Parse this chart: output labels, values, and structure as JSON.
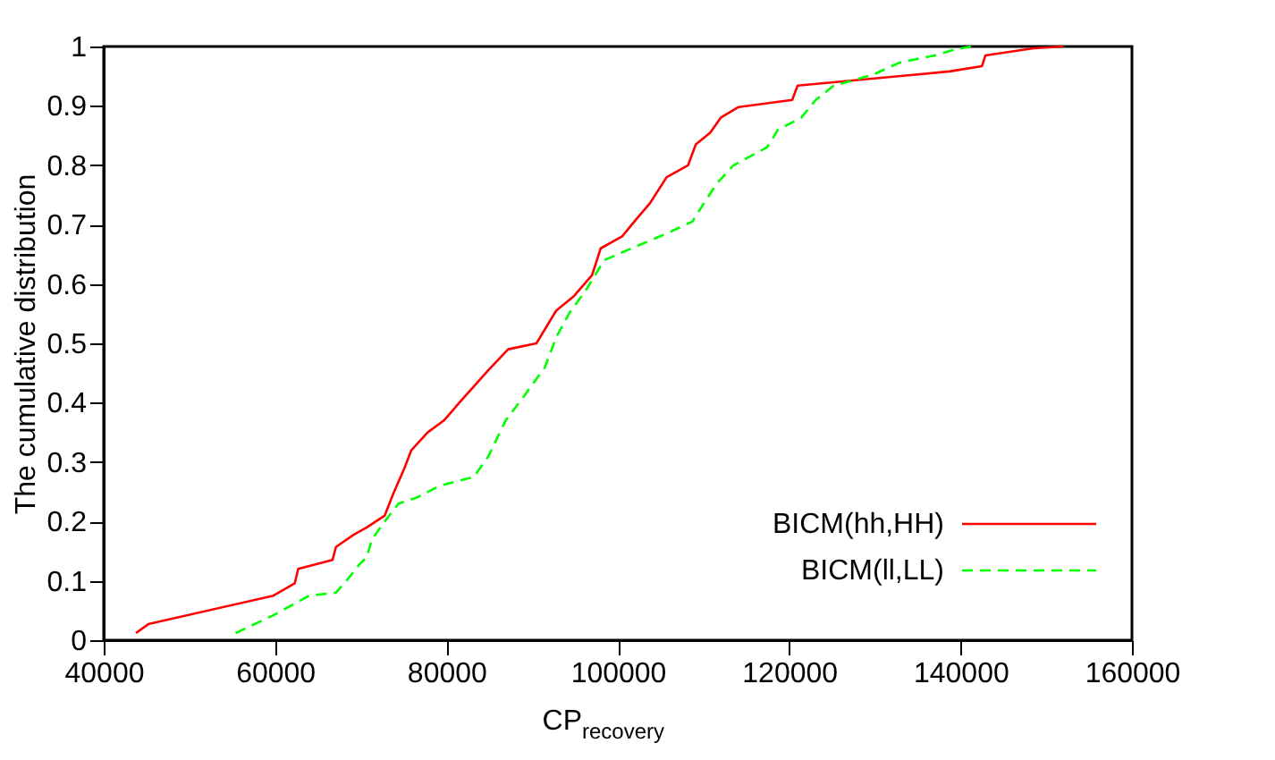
{
  "chart_data": {
    "type": "line",
    "xlabel": "CP$_{recovery}$",
    "ylabel": "The cumulative distribution",
    "xlim": [
      40000,
      160000
    ],
    "xticks": [
      40000,
      60000,
      80000,
      100000,
      120000,
      140000,
      160000
    ],
    "ylim": [
      0,
      1
    ],
    "yticks": [
      0,
      0.1,
      0.2,
      0.3,
      0.4,
      0.5,
      0.6,
      0.7,
      0.8,
      0.9,
      1
    ],
    "grid": false,
    "legend": "bottom right",
    "marker": "none",
    "series": [
      {
        "name": "BICM(hh,HH)",
        "color": "#ff0000",
        "line_style": "solid",
        "x": [
          43760,
          45200,
          59800,
          62300,
          62700,
          66700,
          67100,
          69200,
          70700,
          72800,
          73800,
          75100,
          75900,
          77800,
          79700,
          81500,
          84900,
          87200,
          90500,
          92800,
          94900,
          97000,
          98000,
          100500,
          102200,
          103700,
          105700,
          108200,
          109100,
          110800,
          112000,
          114100,
          120350,
          120980,
          138700,
          142500,
          142900,
          148500,
          152000
        ],
        "values": [
          0.012,
          0.027,
          0.075,
          0.096,
          0.12,
          0.135,
          0.157,
          0.178,
          0.19,
          0.21,
          0.247,
          0.29,
          0.32,
          0.35,
          0.37,
          0.4,
          0.455,
          0.49,
          0.5,
          0.555,
          0.58,
          0.615,
          0.66,
          0.68,
          0.71,
          0.735,
          0.78,
          0.8,
          0.835,
          0.855,
          0.88,
          0.898,
          0.91,
          0.934,
          0.958,
          0.967,
          0.985,
          0.997,
          1.0
        ]
      },
      {
        "name": "BICM(ll,LL)",
        "color": "#00ff00",
        "line_style": "dashed",
        "x": [
          55400,
          59800,
          64000,
          67100,
          68600,
          69800,
          70700,
          71300,
          72800,
          74400,
          76500,
          79200,
          83200,
          84900,
          86900,
          89000,
          91500,
          92800,
          94300,
          96300,
          98400,
          101600,
          105700,
          108700,
          110000,
          111600,
          113500,
          117400,
          118700,
          121400,
          123100,
          125200,
          129700,
          132900,
          137000,
          139100,
          141200
        ],
        "values": [
          0.012,
          0.042,
          0.075,
          0.08,
          0.105,
          0.127,
          0.14,
          0.17,
          0.2,
          0.23,
          0.24,
          0.26,
          0.275,
          0.31,
          0.37,
          0.41,
          0.46,
          0.51,
          0.55,
          0.59,
          0.64,
          0.66,
          0.685,
          0.705,
          0.735,
          0.77,
          0.8,
          0.83,
          0.86,
          0.88,
          0.91,
          0.934,
          0.952,
          0.973,
          0.985,
          0.994,
          1.0
        ]
      }
    ]
  }
}
